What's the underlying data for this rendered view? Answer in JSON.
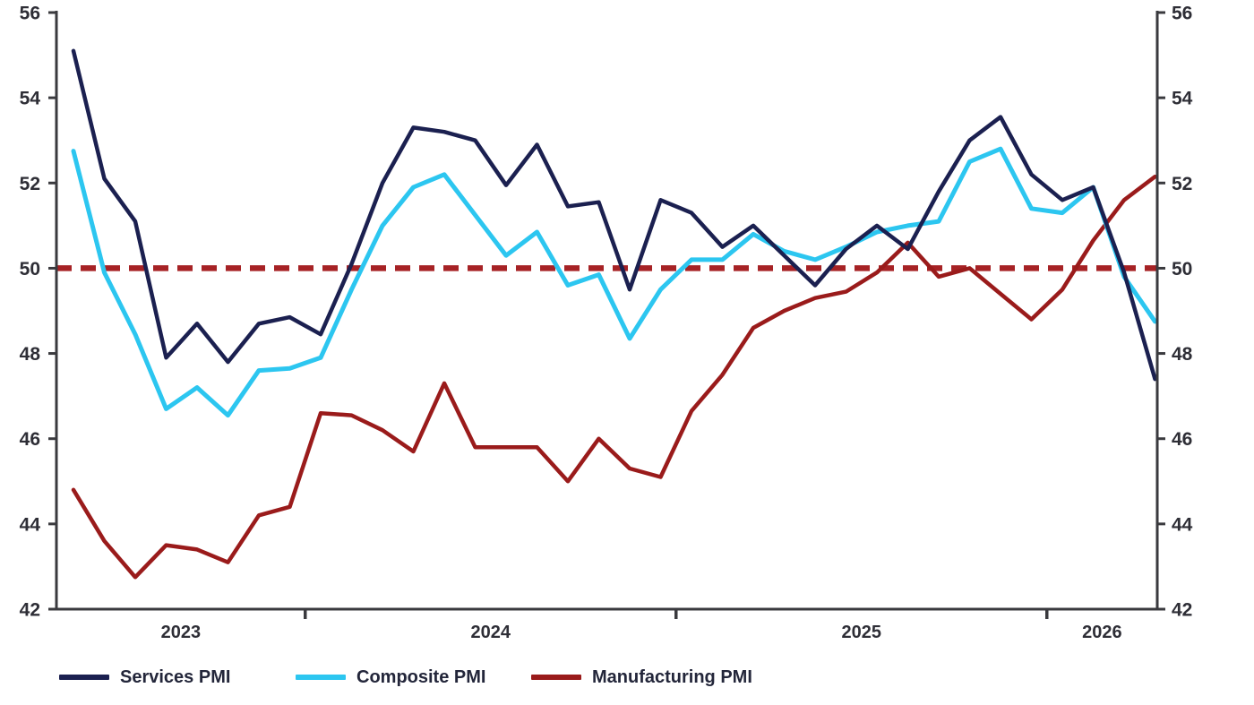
{
  "chart_data": {
    "type": "line",
    "title": "",
    "months": [
      "2023-05",
      "2023-06",
      "2023-07",
      "2023-08",
      "2023-09",
      "2023-10",
      "2023-11",
      "2023-12",
      "2024-01",
      "2024-02",
      "2024-03",
      "2024-04",
      "2024-05",
      "2024-06",
      "2024-07",
      "2024-08",
      "2024-09",
      "2024-10",
      "2024-11",
      "2024-12",
      "2025-01",
      "2025-02",
      "2025-03",
      "2025-04",
      "2025-05",
      "2025-06",
      "2025-07",
      "2025-08",
      "2025-09",
      "2025-10",
      "2025-11",
      "2025-12",
      "2026-01",
      "2026-02",
      "2026-03",
      "2026-04"
    ],
    "series": [
      {
        "name": "Services PMI",
        "color": "#1b2050",
        "values": [
          55.1,
          52.1,
          51.1,
          47.9,
          48.7,
          47.8,
          48.7,
          48.85,
          48.45,
          50.1,
          52.0,
          53.3,
          53.2,
          53.0,
          51.95,
          52.9,
          51.45,
          51.55,
          49.5,
          51.6,
          51.3,
          50.5,
          51.0,
          50.3,
          49.6,
          50.45,
          51.0,
          50.45,
          51.8,
          53.0,
          53.55,
          52.2,
          51.6,
          51.9,
          49.9,
          47.4
        ]
      },
      {
        "name": "Composite PMI",
        "color": "#2cc6f0",
        "values": [
          52.75,
          49.9,
          48.45,
          46.7,
          47.2,
          46.55,
          47.6,
          47.65,
          47.9,
          49.5,
          51.0,
          51.9,
          52.2,
          51.25,
          50.3,
          50.85,
          49.6,
          49.85,
          48.35,
          49.5,
          50.2,
          50.2,
          50.8,
          50.4,
          50.2,
          50.5,
          50.85,
          51.0,
          51.1,
          52.5,
          52.8,
          51.4,
          51.3,
          51.9,
          49.8,
          48.75
        ]
      },
      {
        "name": "Manufacturing PMI",
        "color": "#9a1b1b",
        "values": [
          44.8,
          43.6,
          42.75,
          43.5,
          43.4,
          43.1,
          44.2,
          44.4,
          46.6,
          46.55,
          46.2,
          45.7,
          47.3,
          45.8,
          45.8,
          45.8,
          45.0,
          46.0,
          45.3,
          45.1,
          46.65,
          47.5,
          48.6,
          49.0,
          49.3,
          49.45,
          49.9,
          50.6,
          49.8,
          50.0,
          49.4,
          48.8,
          49.5,
          50.65,
          51.6,
          52.15
        ]
      }
    ],
    "reference_line": {
      "value": 50,
      "style": "dashed",
      "color": "#a62225"
    },
    "y_axis": {
      "min": 42,
      "max": 56,
      "step": 2,
      "ticks": [
        56,
        54,
        52,
        50,
        48,
        46,
        44,
        42
      ],
      "sides": [
        "left",
        "right"
      ],
      "grid": false
    },
    "x_axis": {
      "year_labels": [
        "2023",
        "2024",
        "2025",
        "2026"
      ],
      "year_boundary_indices": [
        8,
        20,
        32
      ]
    },
    "legend": {
      "position": "bottom-left",
      "items": [
        "Services PMI",
        "Composite PMI",
        "Manufacturing PMI"
      ]
    }
  }
}
